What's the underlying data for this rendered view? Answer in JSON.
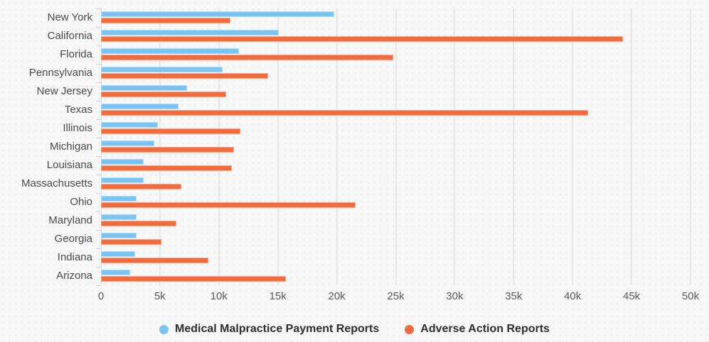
{
  "chart_data": {
    "type": "bar",
    "orientation": "horizontal",
    "title": "",
    "categories": [
      "New York",
      "California",
      "Florida",
      "Pennsylvania",
      "New Jersey",
      "Texas",
      "Illinois",
      "Michigan",
      "Louisiana",
      "Massachusetts",
      "Ohio",
      "Maryland",
      "Georgia",
      "Indiana",
      "Arizona"
    ],
    "series": [
      {
        "name": "Medical Malpractice Payment Reports",
        "color": "#79c4f2",
        "border_color": "#aedcf8",
        "values": [
          19800,
          15100,
          11700,
          10300,
          7300,
          6600,
          4800,
          4500,
          3600,
          3600,
          3000,
          3000,
          3000,
          2900,
          2500
        ]
      },
      {
        "name": "Adverse Action Reports",
        "color": "#f26a3d",
        "border_color": "#f8a584",
        "values": [
          11000,
          44300,
          24800,
          14200,
          10600,
          41300,
          11800,
          11300,
          11100,
          6800,
          21600,
          6400,
          5100,
          9100,
          15700
        ]
      }
    ],
    "x_axis": {
      "min": 0,
      "max": 50000,
      "tick_step": 5000,
      "tick_labels": [
        "0",
        "5k",
        "10k",
        "15k",
        "20k",
        "25k",
        "30k",
        "35k",
        "40k",
        "45k",
        "50k"
      ]
    },
    "grid": true,
    "legend_position": "bottom",
    "background_color": "#f7f7f7",
    "gridline_color": "#e6e6e6"
  }
}
